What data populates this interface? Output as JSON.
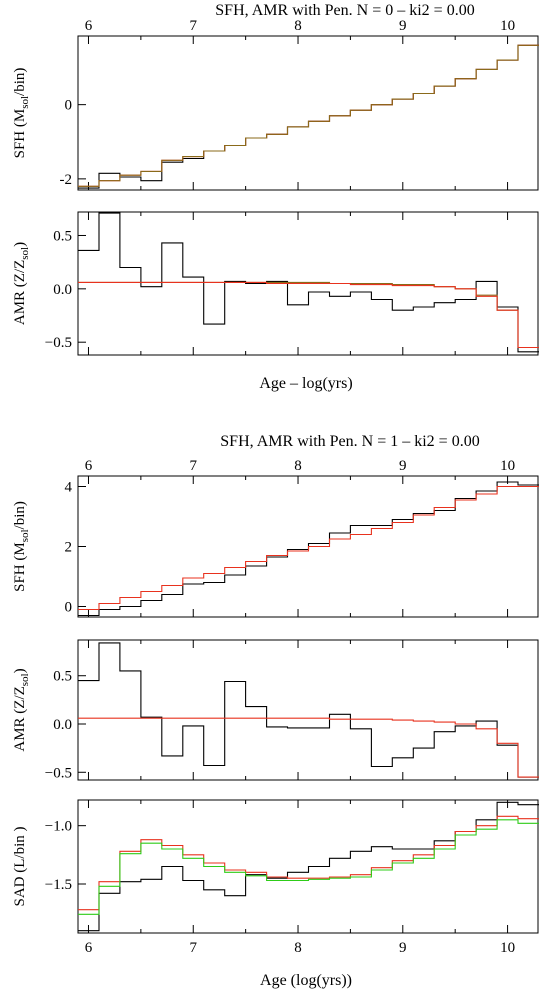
{
  "figure": {
    "top_title": "SFH, AMR with Pen. N = 0 – ki2 = 0.00",
    "top_xlabel": "Age – log(yrs)",
    "bottom_title": "SFH, AMR with Pen. N = 1 – ki2 = 0.00",
    "bottom_xlabel": "Age (log(yrs))",
    "x_ticks": [
      "6",
      "7",
      "8",
      "9",
      "10"
    ]
  },
  "colors": {
    "black": "#000000",
    "red": "#e8321e",
    "green": "#2ecc18",
    "olive": "#8a6a1a"
  },
  "chart_data": [
    {
      "type": "line",
      "step": true,
      "panel": "N0-SFH",
      "ylabel": "SFH (M",
      "ylabel_sub": "sol",
      "ylabel_tail": "/bin)",
      "ylim": [
        -2.3,
        1.85
      ],
      "yticks": [
        -2,
        0
      ],
      "x_edges": [
        5.9,
        6.1,
        6.3,
        6.5,
        6.7,
        6.9,
        7.1,
        7.3,
        7.5,
        7.7,
        7.9,
        8.1,
        8.3,
        8.5,
        8.7,
        8.9,
        9.1,
        9.3,
        9.5,
        9.7,
        9.9,
        10.1,
        10.3
      ],
      "series": [
        {
          "color": "black",
          "values": [
            -2.25,
            -1.85,
            -1.95,
            -2.05,
            -1.55,
            -1.45,
            -1.25,
            -1.1,
            -0.9,
            -0.8,
            -0.6,
            -0.45,
            -0.3,
            -0.15,
            0.0,
            0.15,
            0.3,
            0.5,
            0.7,
            0.95,
            1.2,
            1.6
          ]
        },
        {
          "color": "red",
          "values": [
            -2.2,
            -2.05,
            -1.9,
            -1.8,
            -1.5,
            -1.4,
            -1.25,
            -1.1,
            -0.9,
            -0.8,
            -0.6,
            -0.45,
            -0.3,
            -0.15,
            0.0,
            0.15,
            0.3,
            0.5,
            0.7,
            0.95,
            1.2,
            1.6
          ]
        },
        {
          "color": "olive",
          "values": [
            -2.2,
            -2.05,
            -1.9,
            -1.8,
            -1.5,
            -1.4,
            -1.25,
            -1.1,
            -0.9,
            -0.8,
            -0.6,
            -0.45,
            -0.3,
            -0.15,
            0.0,
            0.15,
            0.3,
            0.5,
            0.7,
            0.95,
            1.2,
            1.6
          ]
        }
      ]
    },
    {
      "type": "line",
      "step": true,
      "panel": "N0-AMR",
      "ylabel": "AMR (Z/Z",
      "ylabel_sub": "sol",
      "ylabel_tail": ")",
      "ylim": [
        -0.62,
        0.72
      ],
      "yticks": [
        0.5,
        0.0,
        -0.5
      ],
      "ytick_labels": [
        "0.5",
        "0.0",
        "−0.5"
      ],
      "x_edges": [
        5.9,
        6.1,
        6.3,
        6.5,
        6.7,
        6.9,
        7.1,
        7.3,
        7.5,
        7.7,
        7.9,
        8.1,
        8.3,
        8.5,
        8.7,
        8.9,
        9.1,
        9.3,
        9.5,
        9.7,
        9.9,
        10.1,
        10.3
      ],
      "series": [
        {
          "color": "black",
          "values": [
            0.36,
            0.71,
            0.2,
            0.02,
            0.43,
            0.11,
            -0.33,
            0.07,
            0.05,
            0.07,
            -0.15,
            -0.03,
            -0.07,
            -0.03,
            -0.1,
            -0.2,
            -0.17,
            -0.13,
            -0.1,
            0.07,
            -0.17,
            -0.59
          ]
        },
        {
          "color": "olive",
          "values": [
            0.06,
            0.06,
            0.06,
            0.06,
            0.06,
            0.06,
            0.06,
            0.06,
            0.06,
            0.06,
            0.06,
            0.06,
            0.05,
            0.05,
            0.05,
            0.04,
            0.04,
            0.02,
            0.0,
            -0.06,
            -0.2,
            -0.55
          ]
        },
        {
          "color": "red",
          "values": [
            0.06,
            0.06,
            0.06,
            0.06,
            0.06,
            0.06,
            0.06,
            0.06,
            0.06,
            0.05,
            0.05,
            0.05,
            0.05,
            0.04,
            0.04,
            0.03,
            0.03,
            0.02,
            0.0,
            -0.07,
            -0.2,
            -0.55
          ]
        }
      ]
    },
    {
      "type": "line",
      "step": true,
      "panel": "N1-SFH",
      "ylabel": "SFH (M",
      "ylabel_sub": "sol",
      "ylabel_tail": "/bin)",
      "ylim": [
        -0.35,
        4.35
      ],
      "yticks": [
        4,
        2,
        0
      ],
      "x_edges": [
        5.9,
        6.1,
        6.3,
        6.5,
        6.7,
        6.9,
        7.1,
        7.3,
        7.5,
        7.7,
        7.9,
        8.1,
        8.3,
        8.5,
        8.7,
        8.9,
        9.1,
        9.3,
        9.5,
        9.7,
        9.9,
        10.1,
        10.3
      ],
      "series": [
        {
          "color": "black",
          "values": [
            -0.3,
            -0.1,
            0.0,
            0.2,
            0.4,
            0.75,
            0.8,
            1.05,
            1.35,
            1.65,
            1.9,
            2.1,
            2.45,
            2.7,
            2.7,
            2.9,
            3.1,
            3.2,
            3.6,
            3.85,
            4.15,
            4.05
          ]
        },
        {
          "color": "red",
          "values": [
            -0.1,
            0.1,
            0.3,
            0.5,
            0.7,
            0.95,
            1.1,
            1.3,
            1.5,
            1.7,
            1.85,
            2.0,
            2.25,
            2.4,
            2.6,
            2.8,
            3.05,
            3.3,
            3.55,
            3.75,
            4.0,
            4.0
          ]
        }
      ]
    },
    {
      "type": "line",
      "step": true,
      "panel": "N1-AMR",
      "ylabel": "AMR (Z/Z",
      "ylabel_sub": "sol",
      "ylabel_tail": ")",
      "ylim": [
        -0.58,
        0.87
      ],
      "yticks": [
        0.5,
        0.0,
        -0.5
      ],
      "ytick_labels": [
        "0.5",
        "0.0",
        "−0.5"
      ],
      "x_edges": [
        5.9,
        6.1,
        6.3,
        6.5,
        6.7,
        6.9,
        7.1,
        7.3,
        7.5,
        7.7,
        7.9,
        8.1,
        8.3,
        8.5,
        8.7,
        8.9,
        9.1,
        9.3,
        9.5,
        9.7,
        9.9,
        10.1,
        10.3
      ],
      "series": [
        {
          "color": "black",
          "values": [
            0.45,
            0.84,
            0.55,
            0.07,
            -0.33,
            -0.02,
            -0.43,
            0.44,
            0.18,
            -0.03,
            -0.04,
            -0.04,
            0.1,
            -0.05,
            -0.44,
            -0.35,
            -0.25,
            -0.08,
            -0.02,
            0.03,
            -0.22,
            -0.55
          ]
        },
        {
          "color": "red",
          "values": [
            0.06,
            0.06,
            0.06,
            0.06,
            0.06,
            0.06,
            0.06,
            0.06,
            0.06,
            0.06,
            0.06,
            0.06,
            0.05,
            0.05,
            0.05,
            0.04,
            0.03,
            0.02,
            0.0,
            -0.05,
            -0.2,
            -0.55
          ]
        }
      ]
    },
    {
      "type": "line",
      "step": true,
      "panel": "N1-SAD",
      "ylabel": "SAD (L/bin )",
      "ylabel_sub": "",
      "ylabel_tail": "",
      "ylim": [
        -1.92,
        -0.78
      ],
      "yticks": [
        -1.0,
        -1.5
      ],
      "ytick_labels": [
        "−1.0",
        "−1.5"
      ],
      "x_edges": [
        5.9,
        6.1,
        6.3,
        6.5,
        6.7,
        6.9,
        7.1,
        7.3,
        7.5,
        7.7,
        7.9,
        8.1,
        8.3,
        8.5,
        8.7,
        8.9,
        9.1,
        9.3,
        9.5,
        9.7,
        9.9,
        10.1,
        10.3
      ],
      "series": [
        {
          "color": "black",
          "values": [
            -1.9,
            -1.58,
            -1.48,
            -1.46,
            -1.35,
            -1.47,
            -1.55,
            -1.6,
            -1.42,
            -1.45,
            -1.4,
            -1.35,
            -1.28,
            -1.22,
            -1.18,
            -1.2,
            -1.2,
            -1.13,
            -1.05,
            -0.95,
            -0.8,
            -0.82
          ]
        },
        {
          "color": "red",
          "values": [
            -1.72,
            -1.48,
            -1.22,
            -1.12,
            -1.17,
            -1.25,
            -1.32,
            -1.38,
            -1.4,
            -1.44,
            -1.45,
            -1.45,
            -1.44,
            -1.42,
            -1.36,
            -1.3,
            -1.25,
            -1.17,
            -1.05,
            -1.0,
            -0.92,
            -0.94
          ]
        },
        {
          "color": "green",
          "values": [
            -1.76,
            -1.52,
            -1.24,
            -1.15,
            -1.2,
            -1.28,
            -1.35,
            -1.4,
            -1.43,
            -1.47,
            -1.47,
            -1.46,
            -1.45,
            -1.44,
            -1.38,
            -1.32,
            -1.28,
            -1.2,
            -1.08,
            -1.03,
            -0.95,
            -0.98
          ]
        }
      ]
    }
  ]
}
